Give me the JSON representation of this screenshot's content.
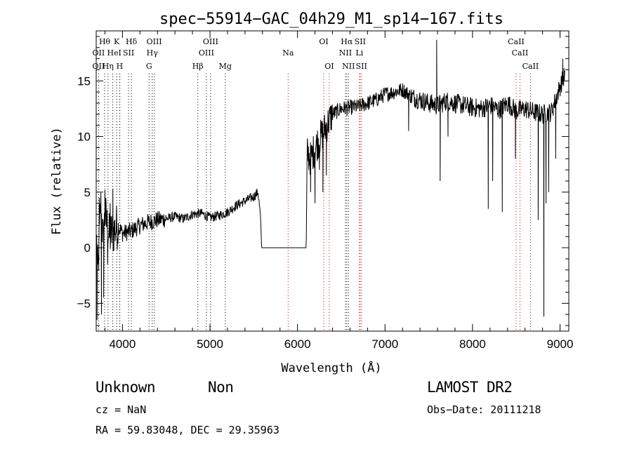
{
  "chart_data": {
    "type": "line",
    "title": "spec−55914−GAC_04h29_M1_sp14−167.fits",
    "xlabel": "Wavelength (Å)",
    "ylabel": "Flux (relative)",
    "xlim": [
      3700,
      9100
    ],
    "ylim": [
      -7.5,
      19.5
    ],
    "xticks": [
      4000,
      5000,
      6000,
      7000,
      8000,
      9000
    ],
    "xtick_labels": [
      "4000",
      "5000",
      "6000",
      "7000",
      "8000",
      "9000"
    ],
    "yticks": [
      -5,
      0,
      5,
      10,
      15
    ],
    "ytick_labels": [
      "−5",
      "0",
      "5",
      "10",
      "15"
    ],
    "series": [
      {
        "name": "",
        "knots": [
          [
            3700,
            1.5
          ],
          [
            3720,
            -2.5
          ],
          [
            3750,
            4.0
          ],
          [
            3780,
            0.5
          ],
          [
            3800,
            3.0
          ],
          [
            3850,
            1.0
          ],
          [
            3900,
            1.5
          ],
          [
            3950,
            2.0
          ],
          [
            4000,
            1.3
          ],
          [
            4100,
            1.5
          ],
          [
            4200,
            2.0
          ],
          [
            4300,
            2.3
          ],
          [
            4400,
            2.5
          ],
          [
            4500,
            2.6
          ],
          [
            4600,
            2.8
          ],
          [
            4700,
            2.6
          ],
          [
            4800,
            3.0
          ],
          [
            4900,
            3.1
          ],
          [
            5000,
            2.7
          ],
          [
            5100,
            2.9
          ],
          [
            5200,
            3.2
          ],
          [
            5300,
            3.8
          ],
          [
            5400,
            4.2
          ],
          [
            5500,
            4.6
          ],
          [
            5550,
            5.0
          ],
          [
            5580,
            2.5
          ],
          [
            5590,
            0.0
          ],
          [
            6100,
            0.0
          ],
          [
            6110,
            8.5
          ],
          [
            6150,
            8.0
          ],
          [
            6200,
            9.0
          ],
          [
            6300,
            10.5
          ],
          [
            6400,
            12.0
          ],
          [
            6500,
            12.5
          ],
          [
            6600,
            12.6
          ],
          [
            6700,
            12.7
          ],
          [
            6800,
            13.0
          ],
          [
            6900,
            13.3
          ],
          [
            7000,
            13.8
          ],
          [
            7100,
            14.0
          ],
          [
            7200,
            14.2
          ],
          [
            7300,
            13.6
          ],
          [
            7400,
            13.3
          ],
          [
            7500,
            13.0
          ],
          [
            7600,
            12.8
          ],
          [
            7700,
            13.2
          ],
          [
            7800,
            13.0
          ],
          [
            7900,
            12.8
          ],
          [
            8000,
            12.6
          ],
          [
            8100,
            12.5
          ],
          [
            8200,
            12.8
          ],
          [
            8300,
            12.4
          ],
          [
            8400,
            13.0
          ],
          [
            8500,
            12.3
          ],
          [
            8600,
            12.5
          ],
          [
            8700,
            12.2
          ],
          [
            8800,
            12.0
          ],
          [
            8900,
            12.2
          ],
          [
            9000,
            14.5
          ],
          [
            9050,
            15.5
          ]
        ],
        "spikes": [
          [
            3710,
            -6.5
          ],
          [
            3735,
            4.5
          ],
          [
            3760,
            -6.0
          ],
          [
            3785,
            -4.5
          ],
          [
            3800,
            5.2
          ],
          [
            3830,
            -1.5
          ],
          [
            3860,
            4.0
          ],
          [
            3890,
            5.3
          ],
          [
            3930,
            3.0
          ],
          [
            6150,
            5.0
          ],
          [
            6200,
            4.0
          ],
          [
            6250,
            7.0
          ],
          [
            6290,
            5.0
          ],
          [
            6330,
            6.5
          ],
          [
            7270,
            10.5
          ],
          [
            7590,
            18.7
          ],
          [
            7630,
            6.0
          ],
          [
            7720,
            10.0
          ],
          [
            8180,
            3.5
          ],
          [
            8230,
            6.0
          ],
          [
            8340,
            3.2
          ],
          [
            8490,
            8.0
          ],
          [
            8750,
            2.5
          ],
          [
            8815,
            -6.2
          ],
          [
            8840,
            4.0
          ],
          [
            8870,
            5.0
          ],
          [
            8950,
            8.0
          ],
          [
            9030,
            17.0
          ]
        ]
      }
    ],
    "line_labels": [
      {
        "text": "Hθ",
        "x": 3797,
        "row": 1,
        "color": "black",
        "line": "black"
      },
      {
        "text": "K",
        "x": 3934,
        "row": 1,
        "color": "black",
        "line": "black"
      },
      {
        "text": "Hδ",
        "x": 4102,
        "row": 1,
        "color": "black",
        "line": "black"
      },
      {
        "text": "OIII",
        "x": 4363,
        "row": 1,
        "color": "black",
        "line": "black"
      },
      {
        "text": "OIII",
        "x": 5007,
        "row": 1,
        "color": "black",
        "line": "black"
      },
      {
        "text": "OI",
        "x": 6300,
        "row": 1,
        "color": "black",
        "line": "red"
      },
      {
        "text": "Hα",
        "x": 6563,
        "row": 1,
        "color": "black",
        "line": "black"
      },
      {
        "text": "SII",
        "x": 6716,
        "row": 1,
        "color": "black",
        "line": "red"
      },
      {
        "text": "CaII",
        "x": 8498,
        "row": 1,
        "color": "black",
        "line": "red"
      },
      {
        "text": "OII",
        "x": 3727,
        "row": 2,
        "color": "black",
        "line": "black"
      },
      {
        "text": "He",
        "x": 3889,
        "row": 2,
        "color": "black",
        "line": "black"
      },
      {
        "text": "I",
        "x": 3970,
        "row": 2,
        "color": "black",
        "line": "black"
      },
      {
        "text": "SII",
        "x": 4070,
        "row": 2,
        "color": "black",
        "line": "black"
      },
      {
        "text": "Hγ",
        "x": 4340,
        "row": 2,
        "color": "black",
        "line": "black"
      },
      {
        "text": "OIII",
        "x": 4959,
        "row": 2,
        "color": "black",
        "line": "black"
      },
      {
        "text": "Na",
        "x": 5893,
        "row": 2,
        "color": "black",
        "line": "red"
      },
      {
        "text": "NII",
        "x": 6548,
        "row": 2,
        "color": "black",
        "line": "black"
      },
      {
        "text": "Li",
        "x": 6707,
        "row": 2,
        "color": "black",
        "line": "red"
      },
      {
        "text": "CaII",
        "x": 8542,
        "row": 2,
        "color": "black",
        "line": "red"
      },
      {
        "text": "OII",
        "x": 3727,
        "row": 3,
        "color": "black",
        "line": "black"
      },
      {
        "text": "Hη",
        "x": 3835,
        "row": 3,
        "color": "black",
        "line": "black"
      },
      {
        "text": "H",
        "x": 3968,
        "row": 3,
        "color": "black",
        "line": "black"
      },
      {
        "text": "G",
        "x": 4304,
        "row": 3,
        "color": "black",
        "line": "black"
      },
      {
        "text": "Hβ",
        "x": 4861,
        "row": 3,
        "color": "black",
        "line": "black"
      },
      {
        "text": "Mg",
        "x": 5175,
        "row": 3,
        "color": "black",
        "line": "black"
      },
      {
        "text": "OI",
        "x": 6363,
        "row": 3,
        "color": "black",
        "line": "red"
      },
      {
        "text": "NII",
        "x": 6583,
        "row": 3,
        "color": "black",
        "line": "black"
      },
      {
        "text": "SII",
        "x": 6731,
        "row": 3,
        "color": "black",
        "line": "red"
      },
      {
        "text": "CaII",
        "x": 8662,
        "row": 3,
        "color": "black",
        "line": "red"
      }
    ],
    "grid": false,
    "colors": {
      "spectrum": "#000000",
      "line_marker_black": "#000000",
      "line_marker_red": "#cc0000"
    }
  },
  "info": {
    "class": "Unknown",
    "subclass": "Non",
    "survey": "LAMOST DR2",
    "cz": "cz = NaN",
    "obs_date": "Obs−Date: 20111218",
    "coords": "RA =  59.83048, DEC =  29.35963"
  }
}
